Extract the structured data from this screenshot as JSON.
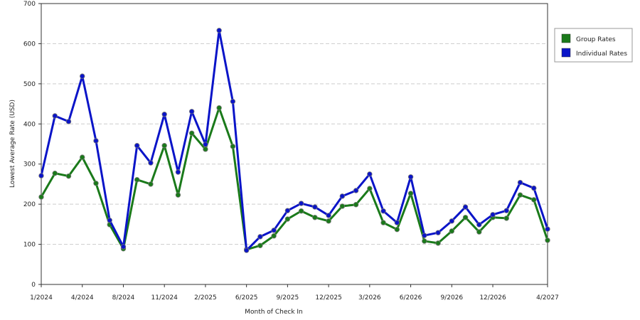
{
  "chart_data": {
    "type": "line",
    "x_label": "Month of Check In",
    "y_label": "Lowest Average Rate (USD)",
    "categories": [
      "1/2024",
      null,
      null,
      "4/2024",
      null,
      null,
      "8/2024",
      null,
      null,
      "11/2024",
      null,
      null,
      "2/2025",
      null,
      null,
      "6/2025",
      null,
      null,
      "9/2025",
      null,
      null,
      "12/2025",
      null,
      null,
      "3/2026",
      null,
      null,
      "6/2026",
      null,
      null,
      "9/2026",
      null,
      null,
      "12/2026",
      null,
      null,
      null,
      "4/2027"
    ],
    "series": [
      {
        "name": "Group Rates",
        "color": "#1a7a1a",
        "values": [
          218,
          277,
          270,
          317,
          252,
          149,
          89,
          261,
          250,
          346,
          223,
          377,
          337,
          440,
          344,
          87,
          97,
          121,
          163,
          183,
          167,
          158,
          195,
          199,
          239,
          154,
          137,
          227,
          108,
          103,
          133,
          167,
          131,
          167,
          165,
          223,
          211,
          110
        ]
      },
      {
        "name": "Individual Rates",
        "color": "#0a14c8",
        "values": [
          271,
          420,
          406,
          519,
          358,
          160,
          94,
          346,
          303,
          424,
          280,
          431,
          349,
          633,
          456,
          85,
          119,
          135,
          184,
          202,
          193,
          172,
          220,
          234,
          275,
          183,
          154,
          268,
          122,
          129,
          158,
          193,
          149,
          174,
          184,
          254,
          240,
          138
        ]
      }
    ],
    "ylim": [
      0,
      700
    ],
    "yticks": [
      0,
      100,
      200,
      300,
      400,
      500,
      600,
      700
    ],
    "grid": true,
    "legend": "right"
  }
}
